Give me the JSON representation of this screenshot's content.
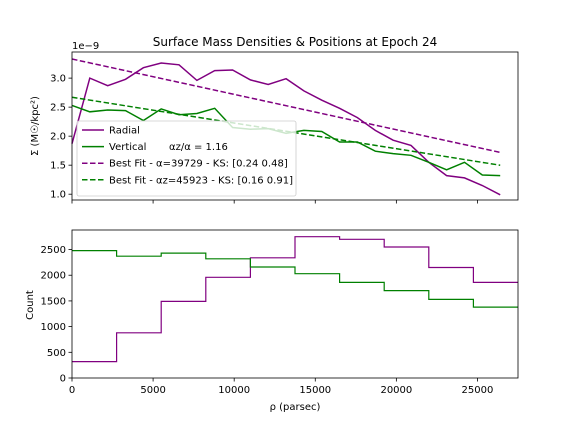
{
  "chart_data": [
    {
      "type": "line",
      "title": "Surface Mass Densities & Positions at Epoch 24",
      "ylabel": "Σ (M☉/kpc²)",
      "y_offset_label": "1e−9",
      "xlim": [
        0,
        27500
      ],
      "ylim": [
        0.9,
        3.45
      ],
      "x_ticks": [
        0,
        5000,
        10000,
        15000,
        20000,
        25000
      ],
      "y_ticks": [
        1.0,
        1.5,
        2.0,
        2.5,
        3.0
      ],
      "y_tick_labels": [
        "1.0",
        "1.5",
        "2.0",
        "2.5",
        "3.0"
      ],
      "grid": false,
      "legend_position": "lower-left",
      "legend": [
        {
          "label": "Radial",
          "color": "#800080",
          "style": "solid"
        },
        {
          "label": "Vertical",
          "color": "#008000",
          "style": "solid",
          "extra": "αz/α = 1.16"
        },
        {
          "label": "Best Fit - α=39729 - KS: [0.24 0.48]",
          "color": "#800080",
          "style": "dashed"
        },
        {
          "label": "Best Fit - αz=45923 - KS: [0.16 0.91]",
          "color": "#008000",
          "style": "dashed"
        }
      ],
      "series": [
        {
          "name": "Radial",
          "color": "#800080",
          "style": "solid",
          "x": [
            0,
            1100,
            2200,
            3300,
            4400,
            5500,
            6600,
            7700,
            8800,
            9900,
            11000,
            12100,
            13200,
            14300,
            15400,
            16500,
            17600,
            18700,
            19800,
            20900,
            22000,
            23100,
            24200,
            25300,
            26400
          ],
          "y": [
            1.87,
            3.0,
            2.87,
            2.98,
            3.18,
            3.26,
            3.23,
            2.96,
            3.13,
            3.14,
            2.97,
            2.89,
            2.99,
            2.78,
            2.62,
            2.48,
            2.32,
            2.1,
            1.93,
            1.84,
            1.55,
            1.32,
            1.28,
            1.15,
            0.99
          ]
        },
        {
          "name": "Vertical",
          "color": "#008000",
          "style": "solid",
          "x": [
            0,
            1100,
            2200,
            3300,
            4400,
            5500,
            6600,
            7700,
            8800,
            9900,
            11000,
            12100,
            13200,
            14300,
            15400,
            16500,
            17600,
            18700,
            19800,
            20900,
            22000,
            23100,
            24200,
            25300,
            26400
          ],
          "y": [
            2.53,
            2.42,
            2.45,
            2.44,
            2.27,
            2.47,
            2.37,
            2.39,
            2.48,
            2.15,
            2.12,
            2.13,
            2.05,
            2.1,
            2.08,
            1.9,
            1.9,
            1.74,
            1.7,
            1.67,
            1.55,
            1.42,
            1.55,
            1.33,
            1.32
          ]
        },
        {
          "name": "Best Fit - α=39729 - KS: [0.24 0.48]",
          "color": "#800080",
          "style": "dashed",
          "x": [
            0,
            26400
          ],
          "y": [
            3.33,
            1.72
          ],
          "alpha": 39729
        },
        {
          "name": "Best Fit - αz=45923 - KS: [0.16 0.91]",
          "color": "#008000",
          "style": "dashed",
          "x": [
            0,
            26400
          ],
          "y": [
            2.67,
            1.5
          ],
          "alpha": 45923
        }
      ]
    },
    {
      "type": "step",
      "xlabel": "ρ (parsec)",
      "ylabel": "Count",
      "xlim": [
        0,
        27500
      ],
      "ylim": [
        0,
        2880
      ],
      "x_ticks": [
        0,
        5000,
        10000,
        15000,
        20000,
        25000
      ],
      "y_ticks": [
        0,
        500,
        1000,
        1500,
        2000,
        2500
      ],
      "grid": false,
      "bin_edges": [
        0,
        2750,
        5500,
        8250,
        11000,
        13750,
        16500,
        19250,
        22000,
        24750,
        27500
      ],
      "series": [
        {
          "color": "#800080",
          "counts": [
            320,
            880,
            1490,
            1960,
            2340,
            2750,
            2700,
            2550,
            2150,
            1860
          ]
        },
        {
          "color": "#008000",
          "counts": [
            2480,
            2370,
            2430,
            2320,
            2160,
            2030,
            1860,
            1700,
            1530,
            1380
          ]
        }
      ]
    }
  ]
}
